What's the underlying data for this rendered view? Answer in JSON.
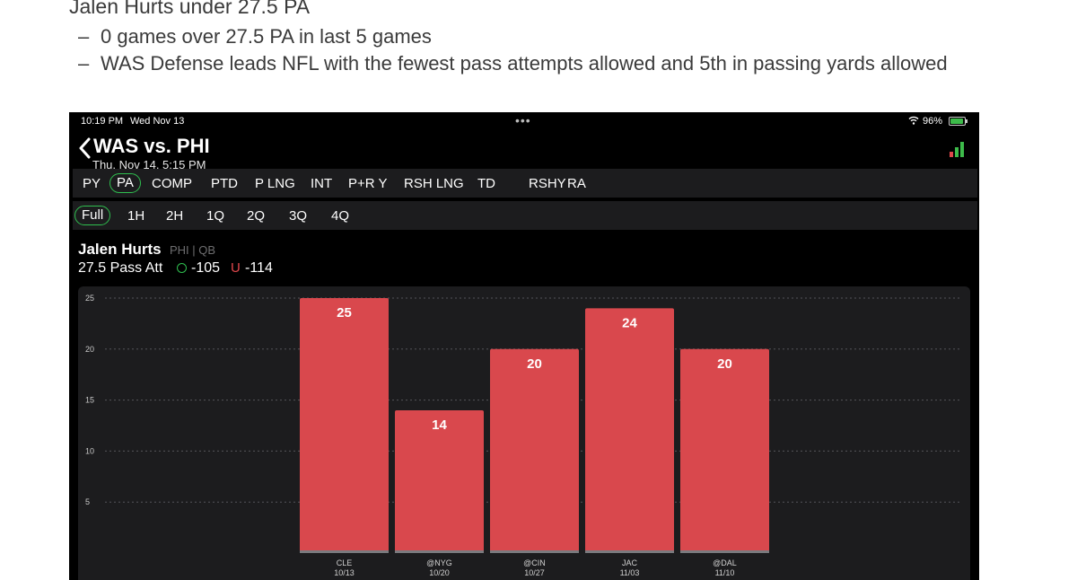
{
  "caption": {
    "title": "Jalen Hurts under 27.5 PA",
    "bullets": [
      {
        "dash": "–",
        "text": "0 games over 27.5 PA in last 5 games"
      },
      {
        "dash": "–",
        "text": "WAS Defense leads NFL with the fewest pass attempts allowed and 5th in passing yards allowed"
      }
    ]
  },
  "status_bar": {
    "time": "10:19 PM",
    "date": "Wed Nov 13",
    "dots": "•••",
    "battery_pct": "96%",
    "battery_level": 0.96
  },
  "header": {
    "title": "WAS vs. PHI",
    "subtitle": "Thu, Nov 14, 5:15 PM",
    "back_icon": "chevron-left-icon",
    "stats_icon": "bar-chart-icon"
  },
  "stat_tabs": [
    {
      "label": "PY",
      "active": false
    },
    {
      "label": "PA",
      "active": true
    },
    {
      "label": "COMP",
      "active": false
    },
    {
      "label": "PTD",
      "active": false
    },
    {
      "label": "P LNG",
      "active": false
    },
    {
      "label": "INT",
      "active": false
    },
    {
      "label": "P+R Y",
      "active": false
    },
    {
      "label": "RSH LNG",
      "active": false
    },
    {
      "label": "TD",
      "active": false
    },
    {
      "label": "RSHY",
      "active": false
    },
    {
      "label": "RA",
      "active": false
    }
  ],
  "period_tabs": [
    {
      "label": "Full",
      "active": true
    },
    {
      "label": "1H",
      "active": false
    },
    {
      "label": "2H",
      "active": false
    },
    {
      "label": "1Q",
      "active": false
    },
    {
      "label": "2Q",
      "active": false
    },
    {
      "label": "3Q",
      "active": false
    },
    {
      "label": "4Q",
      "active": false
    }
  ],
  "player": {
    "name": "Jalen Hurts",
    "meta": "PHI | QB",
    "line": "27.5 Pass Att",
    "over_symbol": "O",
    "over_odds": "-105",
    "under_symbol": "U",
    "under_odds": "-114"
  },
  "colors": {
    "bar": "#d9484d",
    "active_outline": "#2fbf4f",
    "under": "#e0474c"
  },
  "chart_data": {
    "type": "bar",
    "categories": [
      "CLE",
      "@NYG",
      "@CIN",
      "JAC",
      "@DAL"
    ],
    "dates": [
      "10/13",
      "10/20",
      "10/27",
      "11/03",
      "11/10"
    ],
    "values": [
      25,
      14,
      20,
      24,
      20
    ],
    "yticks": [
      5,
      10,
      15,
      20,
      25
    ],
    "ylim": [
      0,
      25
    ],
    "grid": true,
    "title": "",
    "xlabel": "",
    "ylabel": ""
  }
}
